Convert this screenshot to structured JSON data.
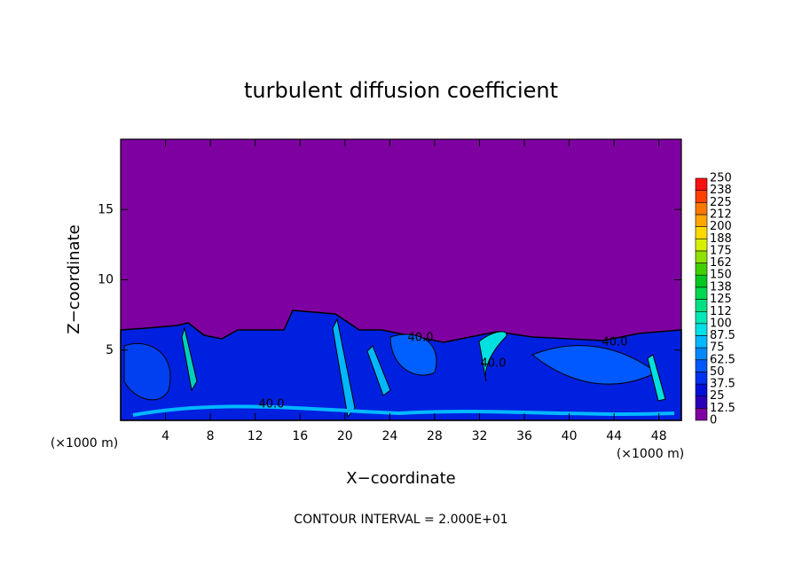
{
  "chart_data": {
    "type": "contour",
    "title": "turbulent diffusion coefficient",
    "xlabel": "X−coordinate",
    "ylabel": "Z−coordinate",
    "x_unit": "(×1000 m)",
    "x_unit_right": "(×1000 m)",
    "footer": "CONTOUR INTERVAL = 2.000E+01",
    "contour_labels": [
      "40.0",
      "40.0",
      "40.0",
      "40.0"
    ],
    "xlim": [
      0,
      50
    ],
    "xticks": [
      4,
      8,
      12,
      16,
      20,
      24,
      28,
      32,
      36,
      40,
      44,
      48
    ],
    "ylim": [
      0,
      20
    ],
    "yticks": [
      5,
      10,
      15
    ],
    "background_color": "#7f00a0",
    "colorbar": {
      "ticks": [
        0,
        12.5,
        25,
        37.5,
        50,
        62.5,
        75,
        87.5,
        100,
        112,
        125,
        {
          "value": 137.5,
          "label": "138"
        },
        150,
        {
          "value": 162.5,
          "label": "162"
        },
        175,
        {
          "value": 187.5,
          "label": "188"
        },
        200,
        {
          "value": 212.5,
          "label": "212"
        },
        225,
        {
          "value": 237.5,
          "label": "238"
        },
        250
      ],
      "colors": [
        "#7f00a0",
        "#2a00b8",
        "#0010d8",
        "#0030f0",
        "#0058ff",
        "#0088ff",
        "#00b8ff",
        "#00e0e8",
        "#00e8b8",
        "#00e080",
        "#00d850",
        "#00c820",
        "#40d000",
        "#90e000",
        "#d8f000",
        "#ffd800",
        "#ffa800",
        "#ff7800",
        "#ff4000",
        "#ff1010"
      ]
    }
  }
}
